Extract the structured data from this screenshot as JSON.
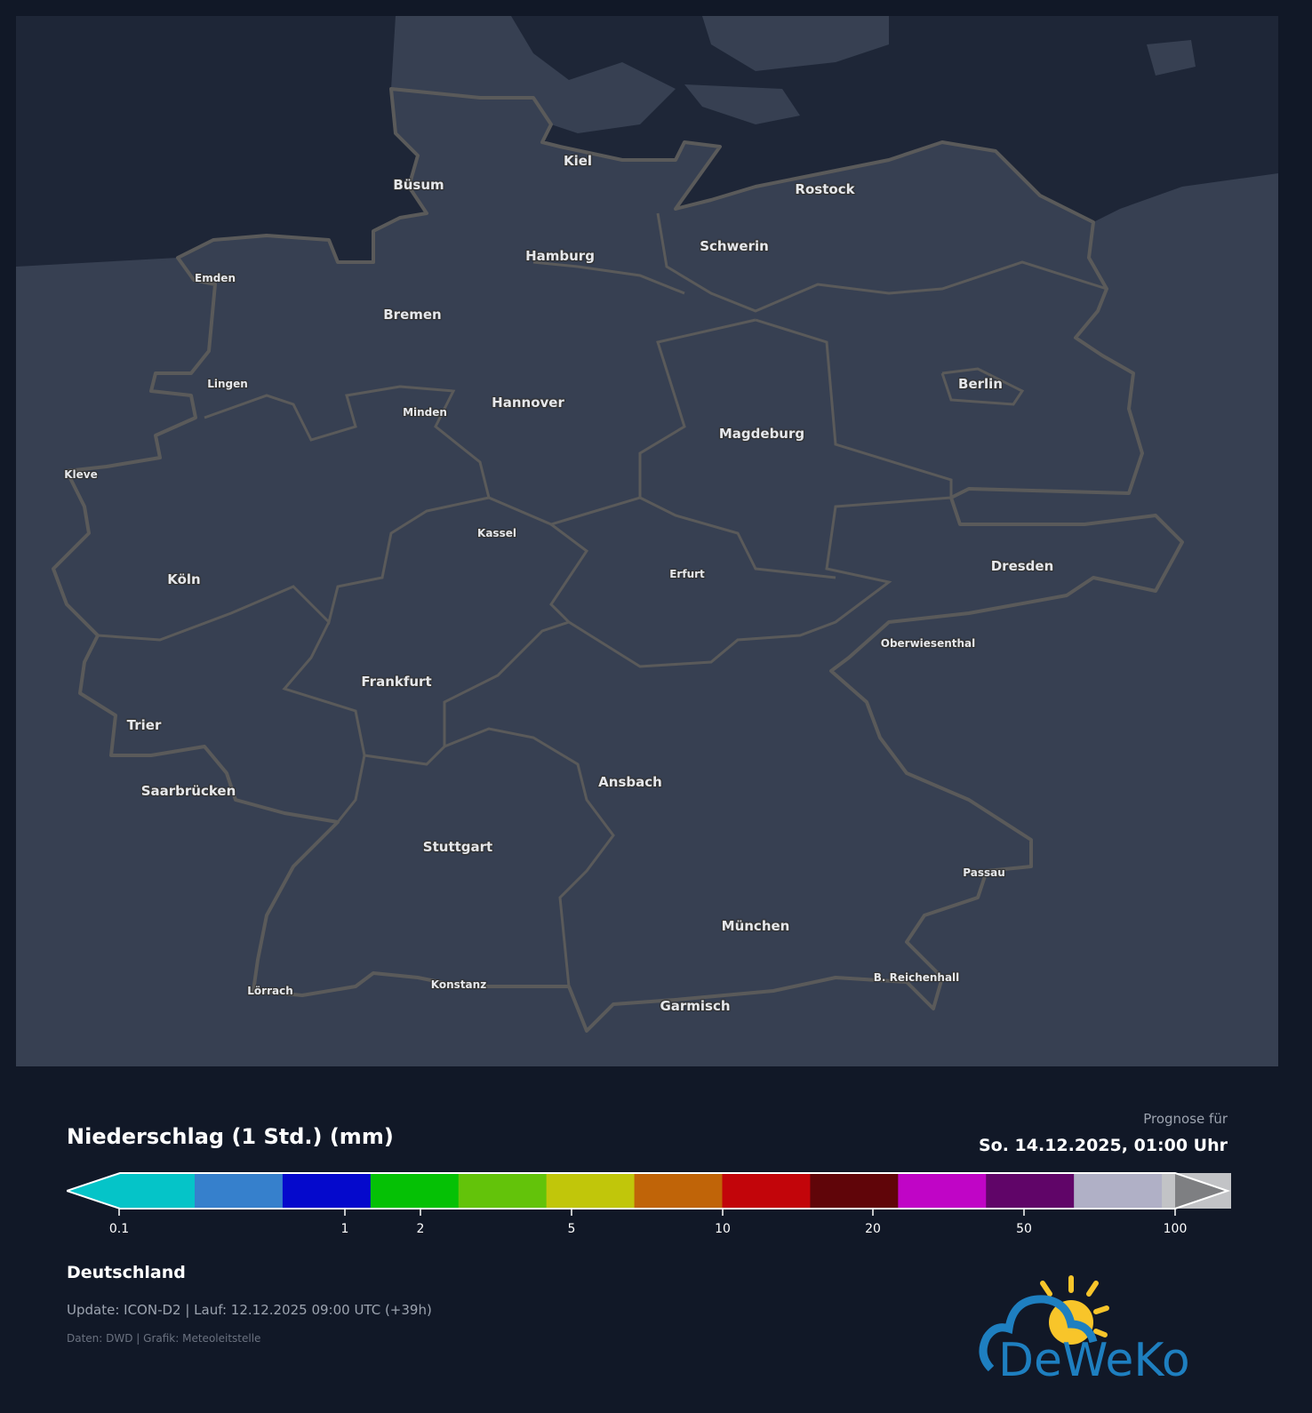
{
  "map": {
    "region": "Deutschland",
    "colors": {
      "land": "#374052",
      "sea": "#1e2637",
      "border": "#5a5a5a"
    },
    "cities": [
      {
        "name": "Kiel",
        "small": false
      },
      {
        "name": "Büsum",
        "small": false
      },
      {
        "name": "Rostock",
        "small": false
      },
      {
        "name": "Hamburg",
        "small": false
      },
      {
        "name": "Schwerin",
        "small": false
      },
      {
        "name": "Emden",
        "small": true
      },
      {
        "name": "Bremen",
        "small": false
      },
      {
        "name": "Lingen",
        "small": true
      },
      {
        "name": "Minden",
        "small": true
      },
      {
        "name": "Hannover",
        "small": false
      },
      {
        "name": "Berlin",
        "small": false
      },
      {
        "name": "Magdeburg",
        "small": false
      },
      {
        "name": "Kleve",
        "small": true
      },
      {
        "name": "Kassel",
        "small": true
      },
      {
        "name": "Dresden",
        "small": false
      },
      {
        "name": "Erfurt",
        "small": true
      },
      {
        "name": "Köln",
        "small": false
      },
      {
        "name": "Oberwiesenthal",
        "small": true
      },
      {
        "name": "Frankfurt",
        "small": false
      },
      {
        "name": "Trier",
        "small": false
      },
      {
        "name": "Ansbach",
        "small": false
      },
      {
        "name": "Saarbrücken",
        "small": false
      },
      {
        "name": "Stuttgart",
        "small": false
      },
      {
        "name": "Passau",
        "small": true
      },
      {
        "name": "München",
        "small": false
      },
      {
        "name": "B. Reichenhall",
        "small": true
      },
      {
        "name": "Lörrach",
        "small": true
      },
      {
        "name": "Konstanz",
        "small": true
      },
      {
        "name": "Garmisch",
        "small": false
      }
    ]
  },
  "legend": {
    "title": "Niederschlag (1 Std.) (mm)",
    "forecast_label": "Prognose für",
    "forecast_time": "So. 14.12.2025, 01:00 Uhr",
    "colors": [
      "#05c4c8",
      "#3680cc",
      "#0509cc",
      "#05c105",
      "#63c30a",
      "#c1c60a",
      "#c06408",
      "#c2050a",
      "#600509",
      "#c005c6",
      "#600568",
      "#b0b0c6",
      "#c2c3c6",
      "#7e7f82"
    ],
    "ticks": [
      "0.1",
      "1",
      "2",
      "5",
      "10",
      "20",
      "50",
      "100"
    ]
  },
  "footer": {
    "region": "Deutschland",
    "update": "Update: ICON-D2 | Lauf: 12.12.2025 09:00 UTC (+39h)",
    "source": "Daten: DWD | Grafik: Meteoleitstelle",
    "logo_text": "DeWeKo"
  }
}
